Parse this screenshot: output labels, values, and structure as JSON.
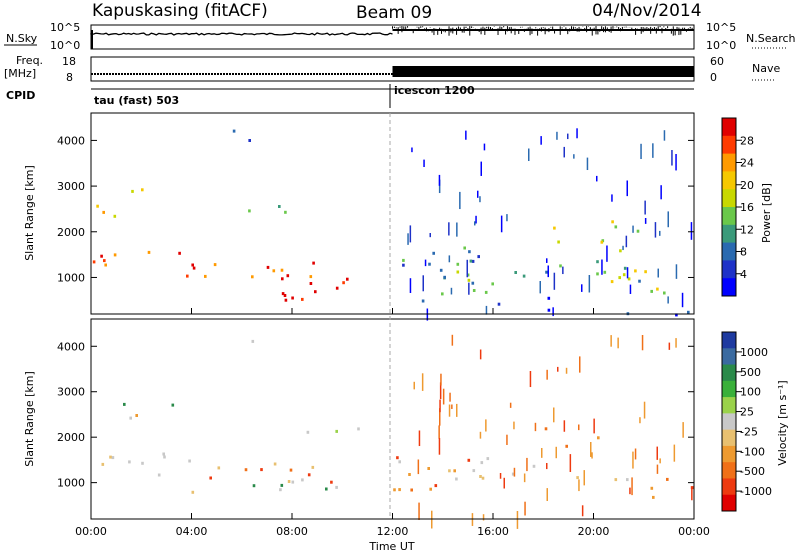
{
  "header": {
    "station": "Kapuskasing (fitACF)",
    "beam": "Beam 09",
    "date": "04/Nov/2014"
  },
  "status_panels": {
    "nsky_label": "N.Sky",
    "nsky_ticks": [
      "10^5",
      "10^0"
    ],
    "nsearch_label": "N.Search",
    "nsearch_ticks": [
      "10^5",
      "10^0"
    ],
    "freq_label": "Freq.",
    "freq_unit": "[MHz]",
    "freq_ticks": [
      "18",
      "8"
    ],
    "nave_label": "Nave",
    "nave_ticks": [
      "60",
      "0"
    ],
    "cpid_label": "CPID",
    "cpid_1": "tau (fast) 503",
    "cpid_2": "icescon 1200"
  },
  "chart_data": [
    {
      "type": "heatmap",
      "name": "power-panel",
      "ylabel": "Slant Range [km]",
      "ylim": [
        200,
        4600
      ],
      "yticks": [
        "4000",
        "3000",
        "2000",
        "1000"
      ],
      "xlim": [
        0,
        24
      ],
      "colorbar_label": "Power [dB]",
      "colorbar_ticks": [
        "28",
        "24",
        "20",
        "16",
        "12",
        "8",
        "4"
      ],
      "colorbar_colors": [
        "#e00000",
        "#ff3b00",
        "#ff9a00",
        "#f5c800",
        "#c8d800",
        "#6ac84a",
        "#3a9a7a",
        "#2a6ab0",
        "#1e32c8",
        "#0000ff"
      ]
    },
    {
      "type": "heatmap",
      "name": "velocity-panel",
      "ylabel": "Slant Range [km]",
      "ylim": [
        200,
        4600
      ],
      "yticks": [
        "4000",
        "3000",
        "2000",
        "1000"
      ],
      "xlim": [
        0,
        24
      ],
      "colorbar_label": "Velocity [m s⁻¹]",
      "colorbar_ticks": [
        "1000",
        "500",
        "100",
        "25",
        "-25",
        "-100",
        "-500",
        "-1000"
      ],
      "colorbar_colors": [
        "#1e3aa0",
        "#3a6aa0",
        "#2a8a4a",
        "#3ab03a",
        "#9ad24a",
        "#c8c8c8",
        "#e8c070",
        "#ee9a30",
        "#f07018",
        "#ee3a10",
        "#e00000"
      ]
    }
  ],
  "xaxis": {
    "ticks": [
      "00:00",
      "04:00",
      "08:00",
      "12:00",
      "16:00",
      "20:00",
      "00:00"
    ],
    "label": "Time UT"
  }
}
